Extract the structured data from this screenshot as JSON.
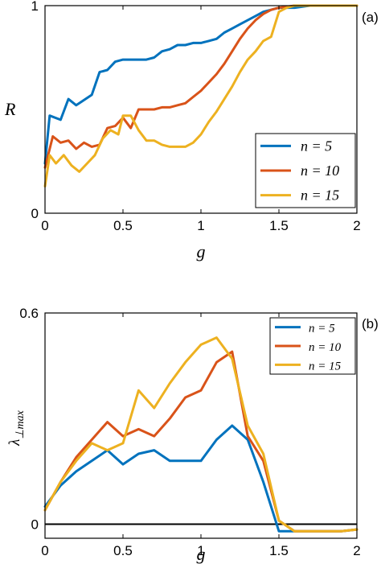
{
  "chart_data": [
    {
      "type": "line",
      "panel_label": "(a)",
      "xlabel": "g",
      "ylabel": "R",
      "xlim": [
        0,
        2
      ],
      "ylim": [
        0,
        1
      ],
      "xticks": [
        "0",
        "0.5",
        "1",
        "1.5",
        "2"
      ],
      "yticks": [
        "0",
        "1"
      ],
      "legend": {
        "position": "lower-right"
      },
      "series": [
        {
          "name": "n = 5",
          "color": "#0072BD",
          "x": [
            0,
            0.03,
            0.1,
            0.15,
            0.2,
            0.3,
            0.35,
            0.4,
            0.45,
            0.5,
            0.55,
            0.6,
            0.65,
            0.7,
            0.75,
            0.8,
            0.85,
            0.9,
            0.95,
            1.0,
            1.05,
            1.1,
            1.15,
            1.2,
            1.25,
            1.3,
            1.35,
            1.4,
            1.45,
            1.5,
            1.55,
            1.6,
            1.7,
            1.8,
            1.9,
            2.0
          ],
          "y": [
            0.24,
            0.47,
            0.45,
            0.55,
            0.52,
            0.57,
            0.68,
            0.69,
            0.73,
            0.74,
            0.74,
            0.74,
            0.74,
            0.75,
            0.78,
            0.79,
            0.81,
            0.81,
            0.82,
            0.82,
            0.83,
            0.84,
            0.87,
            0.89,
            0.91,
            0.93,
            0.95,
            0.97,
            0.98,
            0.99,
            0.99,
            0.99,
            1.0,
            1.0,
            1.0,
            1.0
          ]
        },
        {
          "name": "n = 10",
          "color": "#D95319",
          "x": [
            0,
            0.05,
            0.1,
            0.15,
            0.2,
            0.25,
            0.3,
            0.35,
            0.4,
            0.45,
            0.5,
            0.55,
            0.6,
            0.65,
            0.7,
            0.75,
            0.8,
            0.85,
            0.9,
            0.95,
            1.0,
            1.05,
            1.1,
            1.15,
            1.2,
            1.25,
            1.3,
            1.35,
            1.4,
            1.45,
            1.5,
            1.6,
            1.7,
            1.8,
            1.9,
            2.0
          ],
          "y": [
            0.22,
            0.37,
            0.34,
            0.35,
            0.31,
            0.34,
            0.32,
            0.33,
            0.41,
            0.42,
            0.46,
            0.41,
            0.5,
            0.5,
            0.5,
            0.51,
            0.51,
            0.52,
            0.53,
            0.56,
            0.59,
            0.63,
            0.67,
            0.72,
            0.78,
            0.84,
            0.89,
            0.93,
            0.96,
            0.98,
            0.99,
            1.0,
            1.0,
            1.0,
            1.0,
            1.0
          ]
        },
        {
          "name": "n = 15",
          "color": "#EDB120",
          "x": [
            0,
            0.03,
            0.07,
            0.12,
            0.17,
            0.22,
            0.27,
            0.32,
            0.37,
            0.42,
            0.47,
            0.5,
            0.55,
            0.6,
            0.65,
            0.7,
            0.75,
            0.8,
            0.85,
            0.9,
            0.95,
            1.0,
            1.05,
            1.1,
            1.15,
            1.2,
            1.25,
            1.3,
            1.35,
            1.4,
            1.45,
            1.5,
            1.55,
            1.6,
            1.7,
            1.8,
            1.9,
            2.0
          ],
          "y": [
            0.13,
            0.28,
            0.24,
            0.28,
            0.23,
            0.2,
            0.24,
            0.28,
            0.36,
            0.4,
            0.38,
            0.47,
            0.47,
            0.4,
            0.35,
            0.35,
            0.33,
            0.32,
            0.32,
            0.32,
            0.34,
            0.38,
            0.44,
            0.49,
            0.55,
            0.61,
            0.68,
            0.74,
            0.78,
            0.83,
            0.85,
            0.97,
            0.99,
            1.0,
            1.0,
            1.0,
            1.0,
            1.0
          ]
        }
      ]
    },
    {
      "type": "line",
      "panel_label": "(b)",
      "xlabel": "g",
      "ylabel": "λ⊥max",
      "xlim": [
        0,
        2
      ],
      "ylim": [
        -0.04,
        0.6
      ],
      "xticks": [
        "0",
        "0.5",
        "1",
        "1.5",
        "2"
      ],
      "yticks": [
        "0",
        "0.6"
      ],
      "zero_line": true,
      "legend": {
        "position": "top-right"
      },
      "series": [
        {
          "name": "n = 5",
          "color": "#0072BD",
          "x": [
            0,
            0.1,
            0.2,
            0.3,
            0.4,
            0.5,
            0.6,
            0.7,
            0.8,
            0.9,
            1.0,
            1.1,
            1.2,
            1.3,
            1.4,
            1.5,
            1.6,
            1.7,
            1.8,
            1.9,
            2.0
          ],
          "y": [
            0.05,
            0.11,
            0.15,
            0.18,
            0.21,
            0.17,
            0.2,
            0.21,
            0.18,
            0.18,
            0.18,
            0.24,
            0.28,
            0.24,
            0.12,
            -0.02,
            -0.02,
            -0.02,
            -0.02,
            -0.02,
            -0.015
          ]
        },
        {
          "name": "n = 10",
          "color": "#D95319",
          "x": [
            0,
            0.1,
            0.2,
            0.3,
            0.4,
            0.5,
            0.6,
            0.7,
            0.8,
            0.9,
            1.0,
            1.1,
            1.2,
            1.3,
            1.4,
            1.5,
            1.6,
            1.7,
            1.8,
            1.9,
            2.0
          ],
          "y": [
            0.04,
            0.12,
            0.19,
            0.24,
            0.29,
            0.25,
            0.27,
            0.25,
            0.3,
            0.36,
            0.38,
            0.46,
            0.49,
            0.25,
            0.18,
            0.01,
            -0.02,
            -0.02,
            -0.02,
            -0.02,
            -0.015
          ]
        },
        {
          "name": "n = 15",
          "color": "#EDB120",
          "x": [
            0,
            0.1,
            0.2,
            0.3,
            0.4,
            0.5,
            0.6,
            0.7,
            0.8,
            0.9,
            1.0,
            1.1,
            1.2,
            1.3,
            1.4,
            1.5,
            1.6,
            1.7,
            1.8,
            1.9,
            2.0
          ],
          "y": [
            0.04,
            0.12,
            0.18,
            0.23,
            0.21,
            0.23,
            0.38,
            0.33,
            0.4,
            0.46,
            0.51,
            0.53,
            0.47,
            0.28,
            0.2,
            0.01,
            -0.02,
            -0.02,
            -0.02,
            -0.02,
            -0.015
          ]
        }
      ]
    }
  ]
}
